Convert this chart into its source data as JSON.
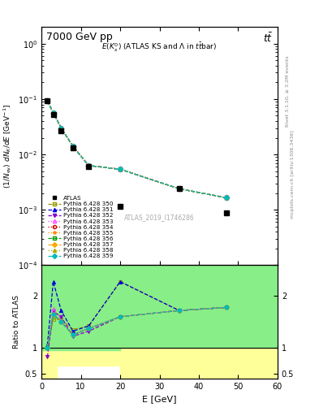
{
  "title_top": "7000 GeV pp",
  "title_top_right": "tt̅",
  "main_title": "E(K$_s^0$) (ATLAS KS and Λ in t̅t̅bar)",
  "watermark": "ATLAS_2019_I1746286",
  "right_label_top": "Rivet 3.1.10, ≥ 3.2M events",
  "right_label_bottom": "mcplots.cern.ch [arXiv:1306.3436]",
  "xlabel": "E [GeV]",
  "ylabel": "(1/N_{ev}) dN_{K}/dE [GeV^{-1}]",
  "ratio_ylabel": "Ratio to ATLAS",
  "xlim": [
    0,
    60
  ],
  "ylim_main_lo": 0.0001,
  "ylim_main_hi": 2.0,
  "ylim_ratio_lo": 0.4,
  "ylim_ratio_hi": 2.6,
  "atlas_x": [
    1.5,
    3.0,
    5.0,
    8.0,
    12.0,
    20.0,
    35.0,
    47.0
  ],
  "atlas_y": [
    0.092,
    0.052,
    0.027,
    0.013,
    0.006,
    0.00115,
    0.0024,
    0.00088
  ],
  "mc_x": [
    1.5,
    3.0,
    5.0,
    8.0,
    12.0,
    20.0,
    35.0,
    47.0
  ],
  "tunes": [
    {
      "name": "350",
      "color": "#999900",
      "marker": "s",
      "ls": "--",
      "mfc": "none",
      "y": [
        0.092,
        0.057,
        0.03,
        0.014,
        0.0063,
        0.0054,
        0.0024,
        0.00165
      ]
    },
    {
      "name": "351",
      "color": "#0000dd",
      "marker": "^",
      "ls": "--",
      "mfc": "#0000dd",
      "y": [
        0.092,
        0.057,
        0.03,
        0.014,
        0.0063,
        0.0054,
        0.0024,
        0.00165
      ]
    },
    {
      "name": "352",
      "color": "#8800cc",
      "marker": "v",
      "ls": "--",
      "mfc": "#8800cc",
      "y": [
        0.092,
        0.057,
        0.03,
        0.014,
        0.0063,
        0.0054,
        0.0024,
        0.00165
      ]
    },
    {
      "name": "353",
      "color": "#ff44ff",
      "marker": "^",
      "ls": "dotted",
      "mfc": "none",
      "y": [
        0.092,
        0.057,
        0.03,
        0.014,
        0.0063,
        0.0054,
        0.0024,
        0.00165
      ]
    },
    {
      "name": "354",
      "color": "#cc0000",
      "marker": "o",
      "ls": "dotted",
      "mfc": "none",
      "y": [
        0.092,
        0.057,
        0.03,
        0.014,
        0.0063,
        0.0054,
        0.0024,
        0.00165
      ]
    },
    {
      "name": "355",
      "color": "#ff8800",
      "marker": "*",
      "ls": "dotted",
      "mfc": "#ff8800",
      "y": [
        0.092,
        0.057,
        0.03,
        0.014,
        0.0063,
        0.0054,
        0.0024,
        0.00165
      ]
    },
    {
      "name": "356",
      "color": "#009900",
      "marker": "s",
      "ls": "--",
      "mfc": "none",
      "y": [
        0.092,
        0.057,
        0.03,
        0.014,
        0.0063,
        0.0054,
        0.0024,
        0.00165
      ]
    },
    {
      "name": "357",
      "color": "#ffaa00",
      "marker": "D",
      "ls": "--",
      "mfc": "#ffaa00",
      "y": [
        0.092,
        0.057,
        0.03,
        0.014,
        0.0063,
        0.0054,
        0.0024,
        0.00165
      ]
    },
    {
      "name": "358",
      "color": "#aaaa00",
      "marker": "^",
      "ls": "dotted",
      "mfc": "#aaaa00",
      "y": [
        0.092,
        0.057,
        0.03,
        0.014,
        0.0063,
        0.0054,
        0.0024,
        0.00165
      ]
    },
    {
      "name": "359",
      "color": "#00bbbb",
      "marker": "D",
      "ls": "--",
      "mfc": "#00bbbb",
      "y": [
        0.092,
        0.057,
        0.03,
        0.014,
        0.0063,
        0.0054,
        0.0024,
        0.00165
      ]
    }
  ],
  "ratio_tunes": [
    {
      "name": "350",
      "color": "#999900",
      "marker": "s",
      "ls": "--",
      "mfc": "none",
      "y": [
        1.0,
        1.55,
        1.55,
        1.35,
        1.42,
        2.28,
        1.72,
        1.78
      ]
    },
    {
      "name": "351",
      "color": "#0000dd",
      "marker": "^",
      "ls": "--",
      "mfc": "#0000dd",
      "y": [
        1.05,
        2.28,
        1.72,
        1.32,
        1.42,
        2.28,
        1.72,
        1.78
      ]
    },
    {
      "name": "352",
      "color": "#8800cc",
      "marker": "v",
      "ls": "--",
      "mfc": "#8800cc",
      "y": [
        0.82,
        1.7,
        1.6,
        1.22,
        1.32,
        1.6,
        1.72,
        1.78
      ]
    },
    {
      "name": "353",
      "color": "#ff44ff",
      "marker": "^",
      "ls": "dotted",
      "mfc": "none",
      "y": [
        1.0,
        1.75,
        1.52,
        1.25,
        1.37,
        1.6,
        1.72,
        1.78
      ]
    },
    {
      "name": "354",
      "color": "#cc0000",
      "marker": "o",
      "ls": "dotted",
      "mfc": "none",
      "y": [
        1.0,
        1.65,
        1.5,
        1.25,
        1.37,
        1.6,
        1.72,
        1.78
      ]
    },
    {
      "name": "355",
      "color": "#ff8800",
      "marker": "*",
      "ls": "dotted",
      "mfc": "#ff8800",
      "y": [
        1.0,
        1.65,
        1.5,
        1.25,
        1.37,
        1.6,
        1.72,
        1.78
      ]
    },
    {
      "name": "356",
      "color": "#009900",
      "marker": "s",
      "ls": "--",
      "mfc": "none",
      "y": [
        1.0,
        1.65,
        1.5,
        1.25,
        1.37,
        1.6,
        1.72,
        1.78
      ]
    },
    {
      "name": "357",
      "color": "#ffaa00",
      "marker": "D",
      "ls": "--",
      "mfc": "#ffaa00",
      "y": [
        1.0,
        1.65,
        1.5,
        1.25,
        1.37,
        1.6,
        1.72,
        1.78
      ]
    },
    {
      "name": "358",
      "color": "#aaaa00",
      "marker": "^",
      "ls": "dotted",
      "mfc": "#aaaa00",
      "y": [
        1.0,
        1.65,
        1.5,
        1.25,
        1.37,
        1.6,
        1.72,
        1.78
      ]
    },
    {
      "name": "359",
      "color": "#00bbbb",
      "marker": "D",
      "ls": "--",
      "mfc": "#00bbbb",
      "y": [
        1.0,
        1.65,
        1.5,
        1.25,
        1.37,
        1.6,
        1.72,
        1.78
      ]
    }
  ],
  "yellow_band_edges": [
    0,
    2,
    4,
    20,
    60
  ],
  "yellow_band_lo": [
    0.42,
    0.42,
    0.65,
    0.42,
    0.42
  ],
  "yellow_band_hi": [
    2.6,
    2.6,
    2.6,
    2.6,
    2.6
  ],
  "green_band_edges": [
    0,
    4,
    20,
    60
  ],
  "green_band_lo": [
    0.95,
    0.95,
    1.0,
    1.0
  ],
  "green_band_hi": [
    2.6,
    2.6,
    2.6,
    2.6
  ]
}
